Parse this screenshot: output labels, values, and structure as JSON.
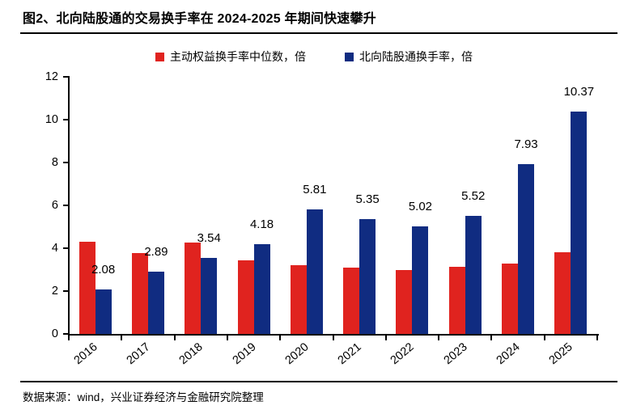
{
  "title": "图2、北向陆股通的交易换手率在 2024-2025 年期间快速攀升",
  "footer": {
    "source": "数据来源：wind，兴业证券经济与金融研究院整理"
  },
  "colors": {
    "red": "#e0231f",
    "blue": "#102c81",
    "axis": "#000000",
    "text": "#000000"
  },
  "legend": {
    "items": [
      {
        "label": "主动权益换手率中位数，倍",
        "color": "#e0231f"
      },
      {
        "label": "北向陆股通换手率，倍",
        "color": "#102c81"
      }
    ]
  },
  "chart_data": {
    "type": "bar",
    "title": "北向陆股通的交易换手率在 2024-2025 年期间快速攀升",
    "categories": [
      "2016",
      "2017",
      "2018",
      "2019",
      "2020",
      "2021",
      "2022",
      "2023",
      "2024",
      "2025"
    ],
    "series": [
      {
        "name": "主动权益换手率中位数，倍",
        "color": "#e0231f",
        "values": [
          4.3,
          3.76,
          4.28,
          3.44,
          3.2,
          3.08,
          2.98,
          3.15,
          3.3,
          3.8
        ],
        "labels_shown": false
      },
      {
        "name": "北向陆股通换手率，倍",
        "color": "#102c81",
        "values": [
          2.08,
          2.89,
          3.54,
          4.18,
          5.81,
          5.35,
          5.02,
          5.52,
          7.93,
          10.37
        ],
        "labels_shown": true,
        "value_labels": [
          "2.08",
          "2.89",
          "3.54",
          "4.18",
          "5.81",
          "5.35",
          "5.02",
          "5.52",
          "7.93",
          "10.37"
        ]
      }
    ],
    "xlabel": "",
    "ylabel": "",
    "ylim": [
      0,
      12
    ],
    "yticks": [
      0,
      2,
      4,
      6,
      8,
      10,
      12
    ],
    "grid": false,
    "legend_position": "top",
    "x_tick_rotation": -40
  }
}
